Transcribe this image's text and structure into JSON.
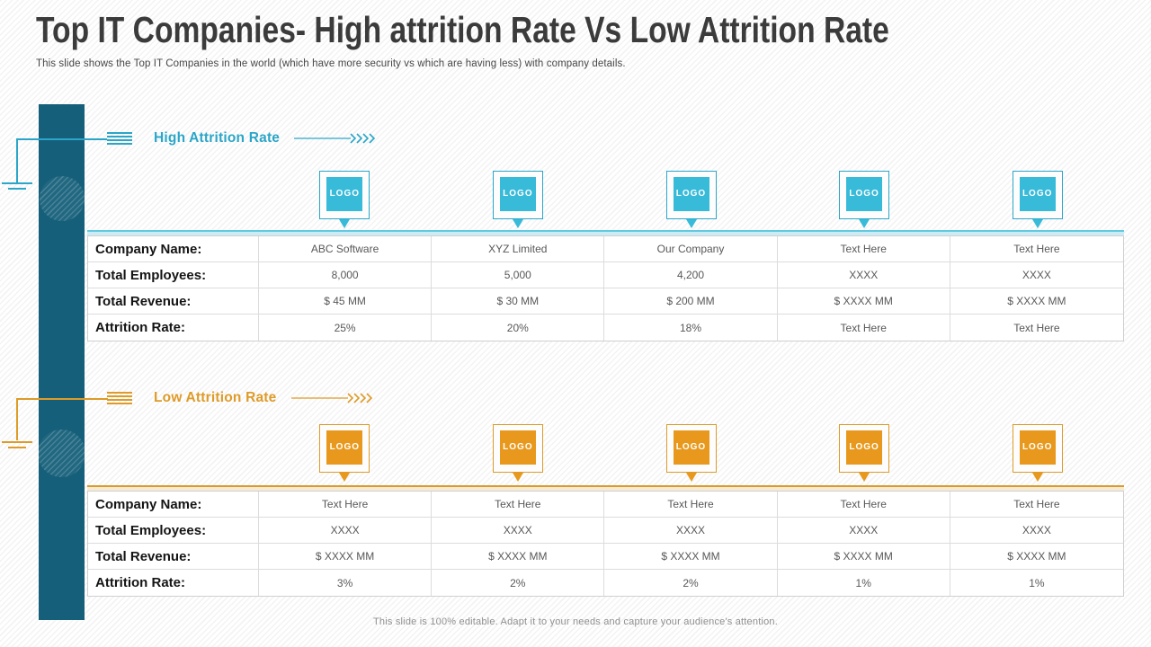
{
  "slide": {
    "title": "Top IT Companies- High attrition Rate Vs Low Attrition Rate",
    "subtitle": "This slide shows the Top IT Companies in the world (which have more security vs which are having less) with company details.",
    "footer": "This slide is 100% editable. Adapt it to your needs and capture your audience's attention."
  },
  "colors": {
    "teal_accent": "#2BA6C8",
    "teal_logo": "#38BAD9",
    "teal_bar": "#155F7A",
    "teal_band": "#CDEBF4",
    "teal_band_top": "#63C9E0",
    "orange_accent": "#DE9B28",
    "orange_logo": "#E8991D",
    "orange_band": "#F6EAD2",
    "orange_band_top": "#D99B2C"
  },
  "icons": {
    "menu": "menu-lines-icon",
    "arrow": "line-chevrons-right-icon",
    "logo_pointer": "triangle-down-icon"
  },
  "sections": [
    {
      "id": "high",
      "heading": "High Attrition Rate",
      "logos": [
        "LOGO",
        "LOGO",
        "LOGO",
        "LOGO",
        "LOGO"
      ],
      "rows": [
        {
          "label": "Company Name:",
          "values": [
            "ABC Software",
            "XYZ Limited",
            "Our Company",
            "Text Here",
            "Text Here"
          ]
        },
        {
          "label": "Total Employees:",
          "values": [
            "8,000",
            "5,000",
            "4,200",
            "XXXX",
            "XXXX"
          ]
        },
        {
          "label": "Total Revenue:",
          "values": [
            "$ 45 MM",
            "$ 30 MM",
            "$ 200 MM",
            "$ XXXX MM",
            "$ XXXX MM"
          ]
        },
        {
          "label": "Attrition Rate:",
          "values": [
            "25%",
            "20%",
            "18%",
            "Text Here",
            "Text Here"
          ]
        }
      ]
    },
    {
      "id": "low",
      "heading": "Low Attrition Rate",
      "logos": [
        "LOGO",
        "LOGO",
        "LOGO",
        "LOGO",
        "LOGO"
      ],
      "rows": [
        {
          "label": "Company Name:",
          "values": [
            "Text Here",
            "Text Here",
            "Text Here",
            "Text Here",
            "Text Here"
          ]
        },
        {
          "label": "Total Employees:",
          "values": [
            "XXXX",
            "XXXX",
            "XXXX",
            "XXXX",
            "XXXX"
          ]
        },
        {
          "label": "Total Revenue:",
          "values": [
            "$ XXXX MM",
            "$ XXXX MM",
            "$ XXXX MM",
            "$ XXXX MM",
            "$ XXXX MM"
          ]
        },
        {
          "label": "Attrition Rate:",
          "values": [
            "3%",
            "2%",
            "2%",
            "1%",
            "1%"
          ]
        }
      ]
    }
  ]
}
